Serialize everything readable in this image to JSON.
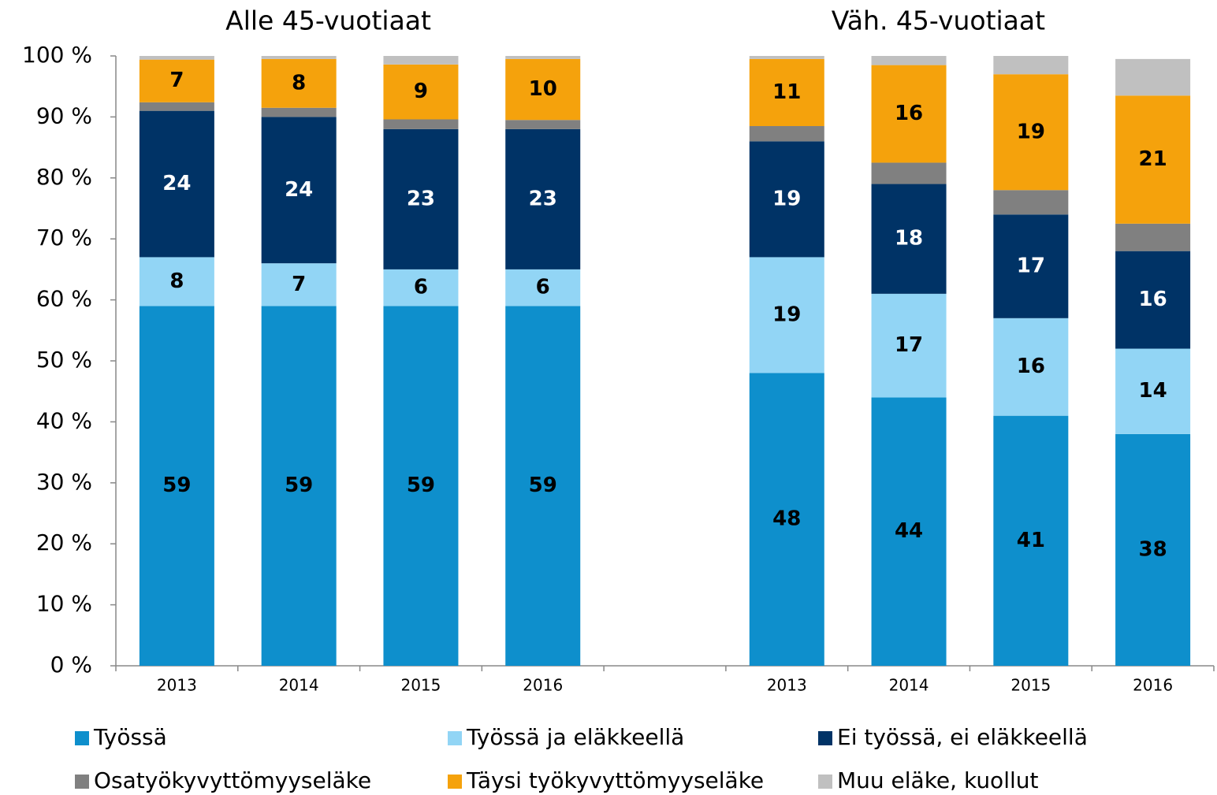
{
  "chart_data": {
    "type": "stacked_bar",
    "annotations": [
      "Alle 45-vuotiaat",
      "Väh. 45-vuotiaat"
    ],
    "categories": [
      "2013",
      "2014",
      "2015",
      "2016",
      null,
      "2013",
      "2014",
      "2015",
      "2016"
    ],
    "series": [
      {
        "name": "Työssä",
        "color": "#0e8fcc",
        "labels": true,
        "label_color": "#000000",
        "values": [
          59,
          59,
          59,
          59,
          null,
          48,
          44,
          41,
          38
        ]
      },
      {
        "name": "Työssä ja eläkkeellä",
        "color": "#92d5f5",
        "labels": true,
        "label_color": "#000000",
        "values": [
          8,
          7,
          6,
          6,
          null,
          19,
          17,
          16,
          14
        ]
      },
      {
        "name": "Ei työssä, ei eläkkeellä",
        "color": "#003366",
        "labels": true,
        "label_color": "#ffffff",
        "values": [
          24,
          24,
          23,
          23,
          null,
          19,
          18,
          17,
          16
        ]
      },
      {
        "name": "Osatyökyvyttömyyseläke",
        "color": "#808080",
        "labels": false,
        "values": [
          1.4,
          1.5,
          1.6,
          1.5,
          null,
          2.5,
          3.5,
          4,
          4.5
        ]
      },
      {
        "name": "Täysi työkyvyttömyyseläke",
        "color": "#f5a20c",
        "labels": true,
        "label_color": "#000000",
        "values": [
          7,
          8,
          9,
          10,
          null,
          11,
          16,
          19,
          21
        ]
      },
      {
        "name": "Muu eläke, kuollut",
        "color": "#c0c0c0",
        "labels": false,
        "values": [
          0.6,
          0.5,
          1.4,
          0.5,
          null,
          0.5,
          1.5,
          3,
          6
        ]
      }
    ],
    "ylim": [
      0,
      100
    ],
    "yticks": [
      {
        "value": 0,
        "label": "0 %"
      },
      {
        "value": 10,
        "label": "10 %"
      },
      {
        "value": 20,
        "label": "20 %"
      },
      {
        "value": 30,
        "label": "30 %"
      },
      {
        "value": 40,
        "label": "40 %"
      },
      {
        "value": 50,
        "label": "50 %"
      },
      {
        "value": 60,
        "label": "60 %"
      },
      {
        "value": 70,
        "label": "70 %"
      },
      {
        "value": 80,
        "label": "80 %"
      },
      {
        "value": 90,
        "label": "90 %"
      },
      {
        "value": 100,
        "label": "100 %"
      }
    ],
    "grid": false
  }
}
